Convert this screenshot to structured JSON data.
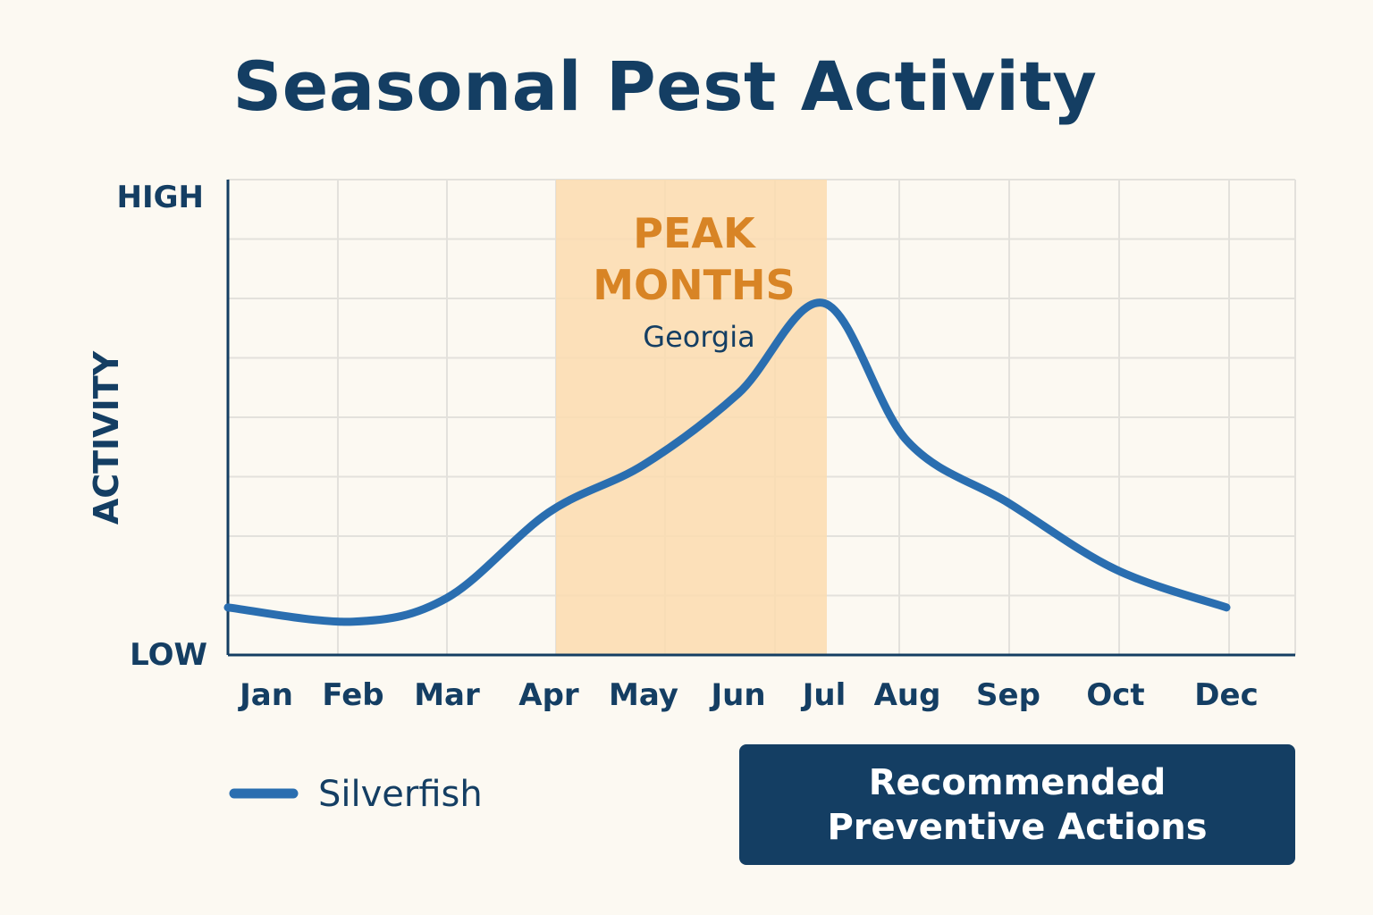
{
  "title": "Seasonal Pest Activity",
  "colors": {
    "title": "#143e63",
    "series": "#2a6eb0",
    "peak_band": "#fbdcaf",
    "peak_text": "#d88425",
    "grid": "#e3e1dc",
    "button_bg": "#143e63"
  },
  "button": {
    "line1": "Recommended",
    "line2": "Preventive Actions"
  },
  "chart_data": {
    "type": "line",
    "ylabel": "ACTIVITY",
    "y_tick_labels": {
      "high": "HIGH",
      "low": "LOW"
    },
    "ylim": [
      0,
      100
    ],
    "grid": true,
    "legend_position": "bottom-left",
    "categories": [
      "Jan",
      "Feb",
      "Mar",
      "Apr",
      "May",
      "Jun",
      "Jul",
      "Aug",
      "Sep",
      "Oct",
      "Dec"
    ],
    "series": [
      {
        "name": "Silverfish",
        "color": "#2a6eb0",
        "x": [
          "Jan",
          "Feb",
          "Mar",
          "Apr",
          "May",
          "Jun",
          "Jul",
          "Aug",
          "Sep",
          "Oct",
          "Dec"
        ],
        "values": [
          10,
          7,
          12,
          30,
          40,
          55,
          74,
          45,
          32,
          18,
          10
        ]
      }
    ],
    "annotation": {
      "label_line1": "PEAK",
      "label_line2": "MONTHS",
      "sublabel": "Georgia",
      "from": "Apr",
      "to": "Jul"
    }
  }
}
